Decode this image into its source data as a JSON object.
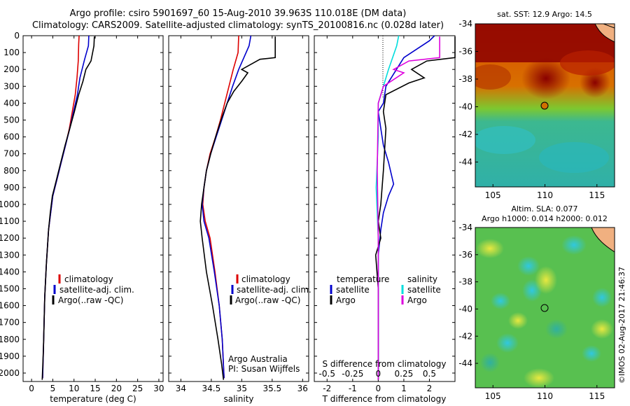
{
  "header": {
    "title_line1": "Argo profile: csiro 5901697_60 15-Aug-2010 39.963S 110.018E (DM data)",
    "title_line2": "Climatology: CARS2009. Satellite-adjusted climatology: synTS_20100816.nc (0.028d later)"
  },
  "watermark": "©IMOS 02-Aug-2017 21:46:37",
  "colors": {
    "climatology": "#dd0000",
    "satellite": "#0000cc",
    "argo": "#000000",
    "sal_satellite": "#00dddd",
    "sal_argo": "#dd00dd"
  },
  "chart_data": [
    {
      "type": "line",
      "id": "temperature",
      "xlabel": "temperature (deg C)",
      "ylabel": "",
      "xlim": [
        -2,
        31
      ],
      "ylim": [
        2050,
        0
      ],
      "xticks": [
        0,
        5,
        10,
        15,
        20,
        25,
        30
      ],
      "yticks": [
        0,
        100,
        200,
        300,
        400,
        500,
        600,
        700,
        800,
        900,
        1000,
        1100,
        1200,
        1300,
        1400,
        1500,
        1600,
        1700,
        1800,
        1900,
        2000
      ],
      "legend": [
        "climatology",
        "satellite-adj. clim.",
        "Argo(..raw -QC)"
      ],
      "legend_position": "lower-right",
      "series": [
        {
          "name": "climatology",
          "x": [
            11.2,
            11.1,
            11.0,
            10.7,
            10.3,
            9.6,
            8.9,
            8.0,
            7.0,
            6.0,
            5.0,
            4.5,
            4.0,
            3.5,
            3.1,
            2.8,
            2.6
          ],
          "y": [
            0,
            50,
            150,
            250,
            350,
            450,
            550,
            650,
            750,
            850,
            950,
            1050,
            1150,
            1350,
            1550,
            1850,
            2030
          ]
        },
        {
          "name": "satellite-adj. clim.",
          "x": [
            13.5,
            13.4,
            12.5,
            11.4,
            10.8,
            9.9,
            9.0,
            8.0,
            7.0,
            6.0,
            5.0,
            4.5,
            4.0,
            3.5,
            3.1,
            2.8,
            2.6
          ],
          "y": [
            0,
            60,
            140,
            250,
            350,
            450,
            550,
            650,
            750,
            850,
            950,
            1050,
            1150,
            1350,
            1550,
            1850,
            2030
          ]
        },
        {
          "name": "Argo(..raw -QC)",
          "x": [
            14.8,
            14.7,
            14.0,
            12.8,
            12.1,
            11.1,
            10.1,
            9.0,
            7.9,
            6.9,
            5.9,
            4.9,
            4.4,
            4.0,
            3.5,
            3.1,
            2.8,
            2.5
          ],
          "y": [
            5,
            60,
            150,
            200,
            270,
            350,
            450,
            550,
            650,
            750,
            850,
            950,
            1050,
            1150,
            1350,
            1550,
            1850,
            2040
          ]
        }
      ]
    },
    {
      "type": "line",
      "id": "salinity",
      "xlabel": "salinity",
      "xlim": [
        33.8,
        36.1
      ],
      "ylim": [
        2050,
        0
      ],
      "xticks": [
        34,
        34.5,
        35,
        35.5,
        36
      ],
      "legend": [
        "climatology",
        "satellite-adj. clim.",
        "Argo(..raw -QC)"
      ],
      "legend_position": "lower-right",
      "annotation": [
        "Argo Australia",
        "PI: Susan Wijffels"
      ],
      "series": [
        {
          "name": "climatology",
          "x": [
            34.95,
            34.94,
            34.86,
            34.79,
            34.72,
            34.65,
            34.57,
            34.48,
            34.42,
            34.38,
            34.36,
            34.4,
            34.48,
            34.56,
            34.63,
            34.68,
            34.71
          ],
          "y": [
            0,
            100,
            200,
            300,
            400,
            500,
            600,
            700,
            800,
            900,
            1000,
            1100,
            1200,
            1400,
            1600,
            1800,
            2030
          ]
        },
        {
          "name": "satellite-adj. clim.",
          "x": [
            35.15,
            35.12,
            34.95,
            34.85,
            34.76,
            34.67,
            34.58,
            34.49,
            34.42,
            34.38,
            34.35,
            34.38,
            34.46,
            34.55,
            34.63,
            34.68,
            34.71
          ],
          "y": [
            0,
            60,
            200,
            300,
            400,
            500,
            600,
            700,
            800,
            900,
            1000,
            1100,
            1200,
            1400,
            1600,
            1800,
            2030
          ]
        },
        {
          "name": "Argo(..raw -QC)",
          "x": [
            35.55,
            35.55,
            35.3,
            35.0,
            35.1,
            35.0,
            34.87,
            34.76,
            34.66,
            34.57,
            34.49,
            34.42,
            34.38,
            34.34,
            34.32,
            34.35,
            34.42,
            34.52,
            34.61,
            34.67,
            34.7
          ],
          "y": [
            5,
            130,
            140,
            200,
            220,
            270,
            330,
            400,
            500,
            600,
            700,
            800,
            900,
            1000,
            1100,
            1200,
            1400,
            1600,
            1800,
            1950,
            2040
          ]
        }
      ]
    },
    {
      "type": "line",
      "id": "differences",
      "xlabel": "T difference from climatology",
      "xlabel_top": "S difference from climatology",
      "xlim": [
        -2.5,
        3.0
      ],
      "ylim": [
        2050,
        0
      ],
      "xticks": [
        -2,
        -1,
        0,
        1,
        2
      ],
      "xticks_salinity": [
        -0.5,
        -0.25,
        0,
        0.25,
        0.5
      ],
      "legend_groups": [
        {
          "title": "temperature",
          "items": [
            "satellite",
            "Argo"
          ]
        },
        {
          "title": "salinity",
          "items": [
            "satellite",
            "Argo"
          ]
        }
      ],
      "series": [
        {
          "name": "temperature satellite",
          "x": [
            2.2,
            2.0,
            1.0,
            0.3,
            0.2,
            0.0,
            0.1,
            0.2,
            0.4,
            0.6,
            0.4,
            0.2,
            0.1,
            0.0,
            0.0,
            0.0,
            0.0
          ],
          "y": [
            0,
            30,
            130,
            300,
            400,
            450,
            550,
            650,
            750,
            880,
            950,
            1050,
            1150,
            1300,
            1500,
            1800,
            2030
          ]
        },
        {
          "name": "temperature Argo",
          "x": [
            3.0,
            3.0,
            1.9,
            1.3,
            1.8,
            1.2,
            0.3,
            0.2,
            0.3,
            0.2,
            0.1,
            0.0,
            0.1,
            -0.1,
            0.0,
            0.0,
            0.0
          ],
          "y": [
            5,
            130,
            150,
            200,
            250,
            280,
            350,
            450,
            550,
            800,
            1000,
            1100,
            1200,
            1300,
            1500,
            1800,
            2040
          ]
        },
        {
          "name": "salinity satellite",
          "x": [
            0.2,
            0.18,
            0.1,
            0.05,
            0.0,
            0.0,
            -0.02,
            0.0,
            0.0,
            0.0
          ],
          "y": [
            0,
            60,
            200,
            300,
            400,
            600,
            900,
            1200,
            1600,
            2030
          ]
        },
        {
          "name": "salinity Argo",
          "x": [
            0.6,
            0.6,
            0.3,
            0.15,
            0.25,
            0.05,
            0.0,
            -0.01,
            0.0,
            0.0,
            0.0
          ],
          "y": [
            5,
            130,
            150,
            200,
            220,
            300,
            400,
            800,
            1200,
            1600,
            2040
          ]
        }
      ]
    },
    {
      "type": "heatmap",
      "id": "sst-map",
      "title": "sat. SST: 12.9  Argo: 14.5",
      "xlim": [
        103.3,
        116.7
      ],
      "ylim": [
        -45.8,
        -34
      ],
      "xticks": [
        105,
        110,
        115
      ],
      "yticks": [
        -34,
        -36,
        -38,
        -40,
        -42,
        -44
      ],
      "marker": {
        "lon": 110.018,
        "lat": -39.963
      }
    },
    {
      "type": "heatmap",
      "id": "sla-map",
      "title_line1": "Altim. SLA: 0.077",
      "title_line2": "Argo h1000: 0.014  h2000: 0.012",
      "xlim": [
        103.3,
        116.7
      ],
      "ylim": [
        -45.8,
        -34
      ],
      "xticks": [
        105,
        110,
        115
      ],
      "yticks": [
        -34,
        -36,
        -38,
        -40,
        -42,
        -44
      ],
      "marker": {
        "lon": 110.018,
        "lat": -39.963
      }
    }
  ]
}
